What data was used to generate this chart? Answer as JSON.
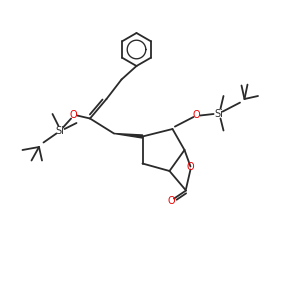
{
  "bg_color": "#ffffff",
  "line_color": "#2a2a2a",
  "o_color": "#ee0000",
  "lw": 1.3,
  "figsize": [
    3.0,
    3.0
  ],
  "dpi": 100,
  "xlim": [
    0,
    10
  ],
  "ylim": [
    0,
    10
  ]
}
